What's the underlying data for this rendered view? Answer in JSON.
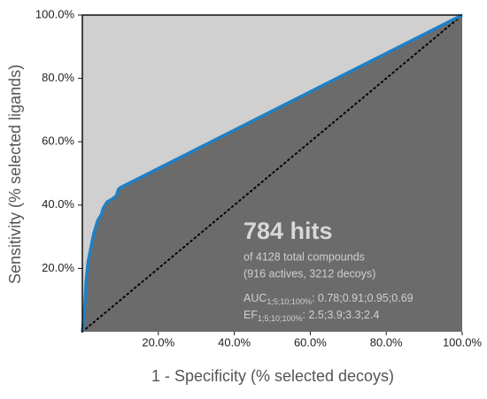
{
  "chart_data": {
    "type": "line",
    "x_label": "1 - Specificity (% selected decoys)",
    "y_label": "Sensitivity (% selected ligands)",
    "x": [
      0,
      0.5,
      1,
      1.5,
      2,
      2.5,
      3,
      3.5,
      4,
      5,
      5.5,
      6.5,
      8,
      9,
      9.5,
      10,
      100
    ],
    "series": [
      {
        "color": "#1f80c6",
        "values": [
          0,
          6,
          16,
          22,
          25,
          28,
          31,
          33,
          35,
          37,
          39,
          41,
          42,
          43,
          45,
          45.5,
          100
        ]
      }
    ],
    "area_color": "#6b6b6b",
    "background": "#d0d0d0",
    "xlim": [
      0,
      100
    ],
    "ylim": [
      0,
      100
    ],
    "xticks": [
      {
        "value": 20,
        "label": "20.0%"
      },
      {
        "value": 40,
        "label": "40.0%"
      },
      {
        "value": 60,
        "label": "60.0%"
      },
      {
        "value": 80,
        "label": "80.0%"
      },
      {
        "value": 100,
        "label": "100.0%"
      }
    ],
    "yticks": [
      {
        "value": 20,
        "label": "20.0%"
      },
      {
        "value": 40,
        "label": "40.0%"
      },
      {
        "value": 60,
        "label": "60.0%"
      },
      {
        "value": 80,
        "label": "80.0%"
      },
      {
        "value": 100,
        "label": "100.0%"
      }
    ],
    "annotations": {
      "hits": "784 hits",
      "total": "of 4128 total compounds",
      "breakdown": "(916 actives, 3212 decoys)",
      "auc": {
        "label": "AUC",
        "subscript": "1;5;10;100%",
        "text": ": 0.78;0.91;0.95;0.69"
      },
      "ef": {
        "label": "EF",
        "subscript": "1;5;10;100%",
        "text": ": 2.5;3.9;3.3;2.4"
      }
    }
  }
}
